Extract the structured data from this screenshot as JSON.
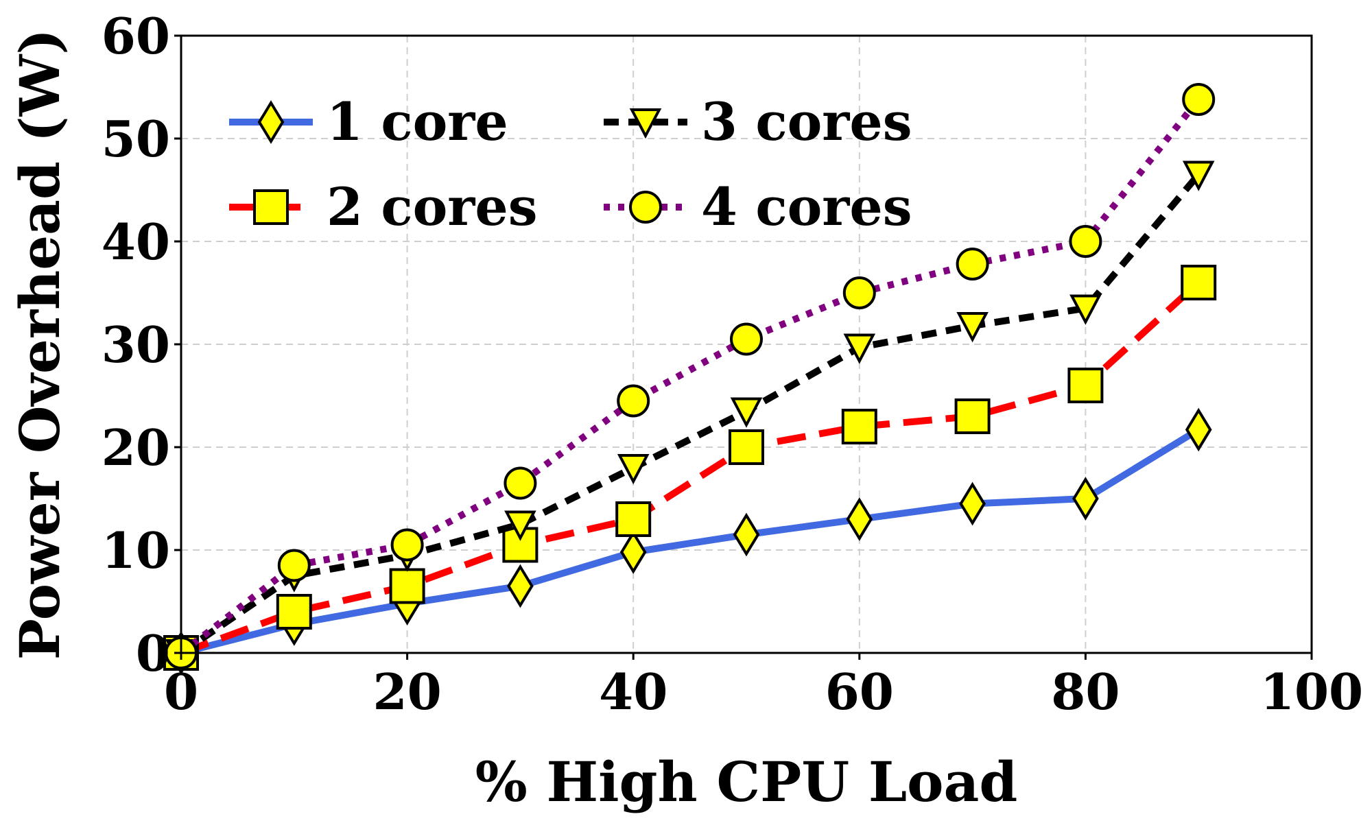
{
  "chart_data": {
    "type": "line",
    "xlabel": "% High CPU Load",
    "ylabel": "Power Overhead (W)",
    "xlim": [
      0,
      100
    ],
    "ylim": [
      0,
      60
    ],
    "xticks": [
      "0",
      "20",
      "40",
      "60",
      "80",
      "100"
    ],
    "yticks": [
      "0",
      "10",
      "20",
      "30",
      "40",
      "50",
      "60"
    ],
    "grid": true,
    "legend": "top-left",
    "x": [
      0,
      10,
      20,
      30,
      40,
      50,
      60,
      70,
      80,
      90
    ],
    "series": [
      {
        "name": "1 core",
        "marker": "diamond",
        "line": "solid",
        "color": "#4169e1",
        "values": [
          0,
          2.8,
          4.8,
          6.5,
          9.8,
          11.5,
          13.0,
          14.5,
          15.0,
          21.7
        ]
      },
      {
        "name": "2 cores",
        "marker": "square",
        "line": "dashed",
        "color": "#ff0000",
        "values": [
          0,
          4.0,
          6.5,
          10.5,
          13.0,
          20.0,
          22.0,
          23.0,
          26.0,
          36.0
        ]
      },
      {
        "name": "3 cores",
        "marker": "triangle-down",
        "line": "dashed-short",
        "color": "#000000",
        "values": [
          0,
          7.5,
          9.5,
          12.5,
          18.0,
          23.5,
          29.7,
          31.8,
          33.5,
          46.5
        ]
      },
      {
        "name": "4 cores",
        "marker": "circle",
        "line": "dotted",
        "color": "#800080",
        "values": [
          0,
          8.5,
          10.5,
          16.5,
          24.5,
          30.5,
          35.0,
          37.8,
          40.0,
          53.8
        ]
      }
    ],
    "marker_fill": "#ffff00"
  }
}
